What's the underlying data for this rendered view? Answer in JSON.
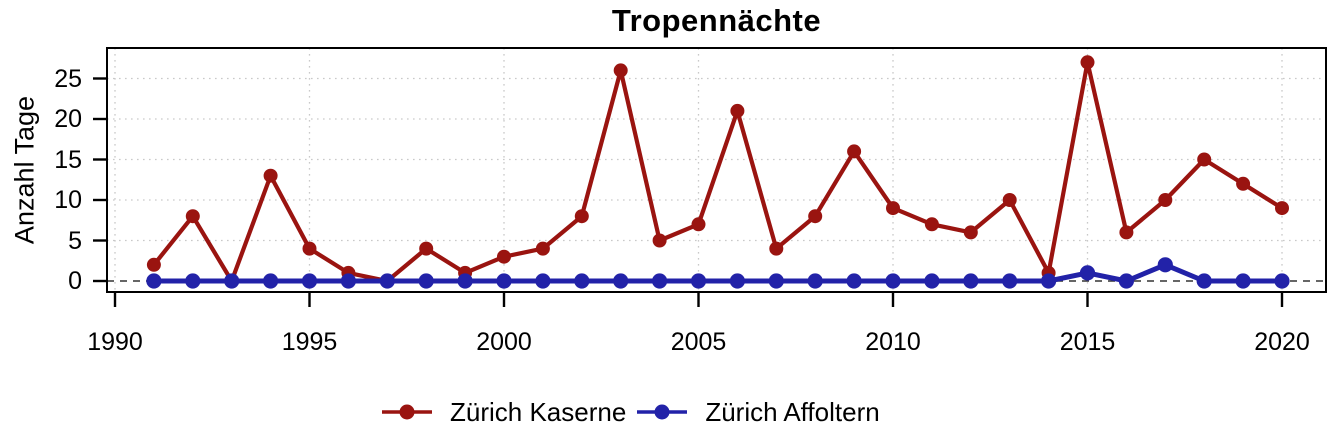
{
  "chart_data": {
    "type": "line",
    "title": "Tropennächte",
    "xlabel": "",
    "ylabel": "Anzahl Tage",
    "x": [
      1991,
      1992,
      1993,
      1994,
      1995,
      1996,
      1997,
      1998,
      1999,
      2000,
      2001,
      2002,
      2003,
      2004,
      2005,
      2006,
      2007,
      2008,
      2009,
      2010,
      2011,
      2012,
      2013,
      2014,
      2015,
      2016,
      2017,
      2018,
      2019,
      2020
    ],
    "series": [
      {
        "name": "Zürich Kaserne",
        "color": "#9a1410",
        "marker": "circle",
        "values": [
          2,
          8,
          0,
          13,
          4,
          1,
          0,
          4,
          1,
          3,
          4,
          8,
          26,
          5,
          7,
          21,
          4,
          8,
          16,
          9,
          7,
          6,
          10,
          1,
          27,
          6,
          10,
          15,
          12,
          9
        ]
      },
      {
        "name": "Zürich Affoltern",
        "color": "#2222a8",
        "marker": "circle",
        "values": [
          0,
          0,
          0,
          0,
          0,
          0,
          0,
          0,
          0,
          0,
          0,
          0,
          0,
          0,
          0,
          0,
          0,
          0,
          0,
          0,
          0,
          0,
          0,
          0,
          1,
          0,
          2,
          0,
          0,
          0
        ]
      }
    ],
    "xticks": [
      1990,
      1995,
      2000,
      2005,
      2010,
      2015,
      2020
    ],
    "yticks": [
      0,
      5,
      10,
      15,
      20,
      25
    ],
    "xlim": [
      1989.8,
      2021.1
    ],
    "ylim": [
      -1.4,
      28.8
    ],
    "grid": "dotted",
    "zero_reference_line": "dashed",
    "legend_position": "bottom-center"
  },
  "colors": {
    "kaserne_red": "#9a1410",
    "affoltern_blue": "#2222a8",
    "grid": "#c9c9c9",
    "zero_dash": "#333333",
    "axis": "#000000",
    "background": "#ffffff"
  }
}
